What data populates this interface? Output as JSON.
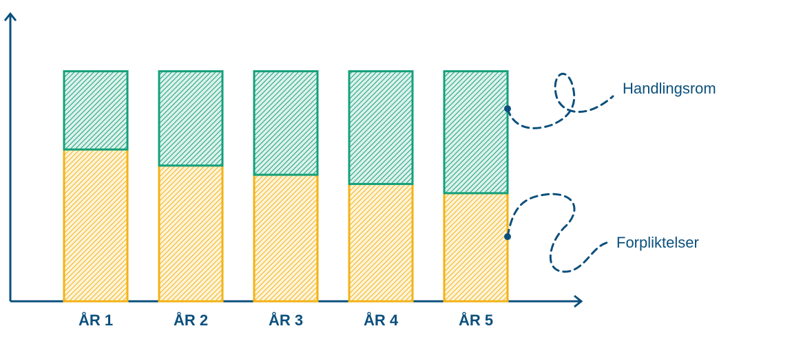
{
  "chart_data": {
    "type": "stacked_bar",
    "categories": [
      "ÅR 1",
      "ÅR 2",
      "ÅR 3",
      "ÅR 4",
      "ÅR 5"
    ],
    "series": [
      {
        "name": "Forpliktelser",
        "color": "#f2b316",
        "values": [
          66,
          59,
          55,
          51,
          47
        ]
      },
      {
        "name": "Handlingsrom",
        "color": "#14a07a",
        "values": [
          34,
          41,
          45,
          49,
          53
        ]
      }
    ],
    "ylim": [
      0,
      125
    ]
  }
}
